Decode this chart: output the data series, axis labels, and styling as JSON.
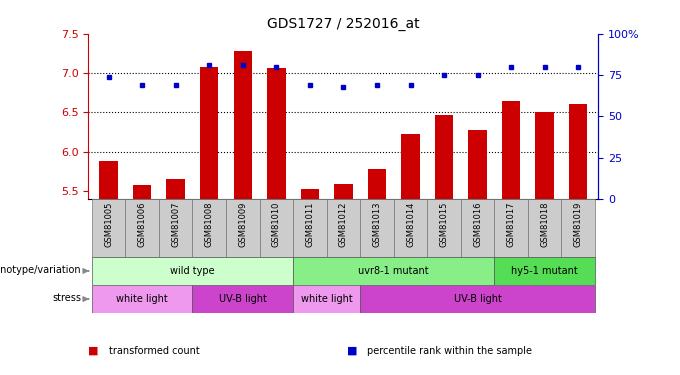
{
  "title": "GDS1727 / 252016_at",
  "samples": [
    "GSM81005",
    "GSM81006",
    "GSM81007",
    "GSM81008",
    "GSM81009",
    "GSM81010",
    "GSM81011",
    "GSM81012",
    "GSM81013",
    "GSM81014",
    "GSM81015",
    "GSM81016",
    "GSM81017",
    "GSM81018",
    "GSM81019"
  ],
  "transformed_count": [
    5.88,
    5.57,
    5.65,
    7.08,
    7.28,
    7.07,
    5.53,
    5.59,
    5.78,
    6.22,
    6.46,
    6.27,
    6.65,
    6.5,
    6.6
  ],
  "percentile_rank": [
    74,
    69,
    69,
    81,
    81,
    80,
    69,
    68,
    69,
    69,
    75,
    75,
    80,
    80,
    80
  ],
  "ylim_left": [
    5.4,
    7.5
  ],
  "ylim_right": [
    0,
    100
  ],
  "yticks_left": [
    5.5,
    6.0,
    6.5,
    7.0,
    7.5
  ],
  "yticks_right": [
    0,
    25,
    50,
    75,
    100
  ],
  "ytick_labels_right": [
    "0",
    "25",
    "50",
    "75",
    "100%"
  ],
  "bar_color": "#cc0000",
  "dot_color": "#0000cc",
  "bar_bottom": 5.4,
  "genotype_groups": [
    {
      "label": "wild type",
      "start": 0,
      "end": 5,
      "color": "#ccffcc"
    },
    {
      "label": "uvr8-1 mutant",
      "start": 6,
      "end": 11,
      "color": "#88ee88"
    },
    {
      "label": "hy5-1 mutant",
      "start": 12,
      "end": 14,
      "color": "#55dd55"
    }
  ],
  "stress_groups": [
    {
      "label": "white light",
      "start": 0,
      "end": 2,
      "color": "#ee99ee"
    },
    {
      "label": "UV-B light",
      "start": 3,
      "end": 5,
      "color": "#cc44cc"
    },
    {
      "label": "white light",
      "start": 6,
      "end": 7,
      "color": "#ee99ee"
    },
    {
      "label": "UV-B light",
      "start": 8,
      "end": 14,
      "color": "#cc44cc"
    }
  ],
  "legend_items": [
    {
      "label": "transformed count",
      "color": "#cc0000"
    },
    {
      "label": "percentile rank within the sample",
      "color": "#0000cc"
    }
  ],
  "grid_yticks": [
    6.0,
    6.5,
    7.0
  ],
  "grid_color": "#000000",
  "tick_label_color_left": "#cc0000",
  "tick_label_color_right": "#0000cc",
  "background_color": "#ffffff",
  "sample_area_color": "#cccccc"
}
